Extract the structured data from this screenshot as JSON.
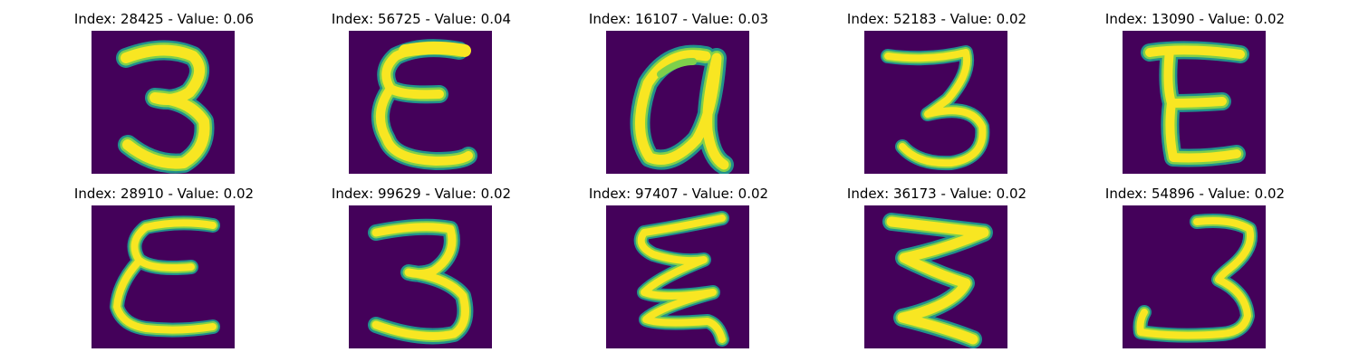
{
  "colors": {
    "background": "#44015a",
    "stroke_core": "#f8e622",
    "stroke_mid": "#7ed04b",
    "stroke_edge": "#21908c",
    "stroke_outer": "#3b528b"
  },
  "figure": {
    "panels": [
      {
        "title": "Index: 28425 - Value: 0.06",
        "index": 28425,
        "value": 0.06,
        "glyph": "3"
      },
      {
        "title": "Index: 56725 - Value: 0.04",
        "index": 56725,
        "value": 0.04,
        "glyph": "E-curly"
      },
      {
        "title": "Index: 16107 - Value: 0.03",
        "index": 16107,
        "value": 0.03,
        "glyph": "a-loop"
      },
      {
        "title": "Index: 52183 - Value: 0.02",
        "index": 52183,
        "value": 0.02,
        "glyph": "3"
      },
      {
        "title": "Index: 13090 - Value: 0.02",
        "index": 13090,
        "value": 0.02,
        "glyph": "E-block"
      },
      {
        "title": "Index: 28910 - Value: 0.02",
        "index": 28910,
        "value": 0.02,
        "glyph": "E-curly"
      },
      {
        "title": "Index: 99629 - Value: 0.02",
        "index": 99629,
        "value": 0.02,
        "glyph": "3"
      },
      {
        "title": "Index: 97407 - Value: 0.02",
        "index": 97407,
        "value": 0.02,
        "glyph": "E-zigzag"
      },
      {
        "title": "Index: 36173 - Value: 0.02",
        "index": 36173,
        "value": 0.02,
        "glyph": "3-zigzag"
      },
      {
        "title": "Index: 54896 - Value: 0.02",
        "index": 54896,
        "value": 0.02,
        "glyph": "3-hook"
      }
    ]
  }
}
